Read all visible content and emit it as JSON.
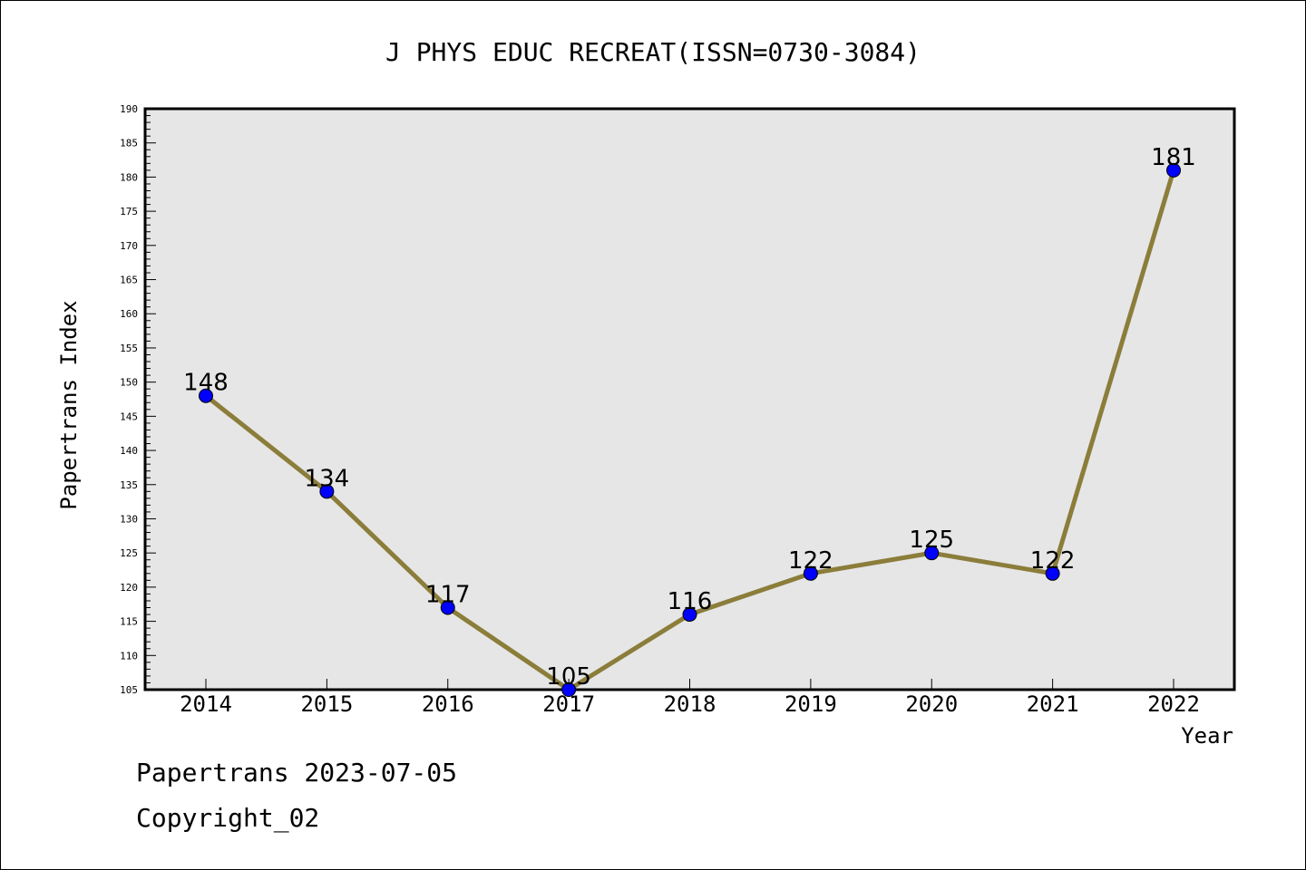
{
  "chart_data": {
    "type": "line",
    "title": "J PHYS EDUC RECREAT(ISSN=0730-3084)",
    "xlabel": "Year",
    "ylabel": "Papertrans Index",
    "categories": [
      "2014",
      "2015",
      "2016",
      "2017",
      "2018",
      "2019",
      "2020",
      "2021",
      "2022"
    ],
    "series": [
      {
        "values": [
          148,
          134,
          117,
          105,
          116,
          122,
          125,
          122,
          181
        ]
      }
    ],
    "ylim": [
      105,
      190
    ],
    "yticks": [
      105,
      110,
      115,
      120,
      125,
      130,
      135,
      140,
      145,
      150,
      155,
      160,
      165,
      170,
      175,
      180,
      185,
      190
    ],
    "grid": false,
    "colors": {
      "line": "#8B7D3A",
      "marker": "#0000FF",
      "plot_bg": "#E6E6E6"
    }
  },
  "footer": {
    "date_text": "Papertrans 2023-07-05",
    "copyright_text": "Copyright_02"
  }
}
